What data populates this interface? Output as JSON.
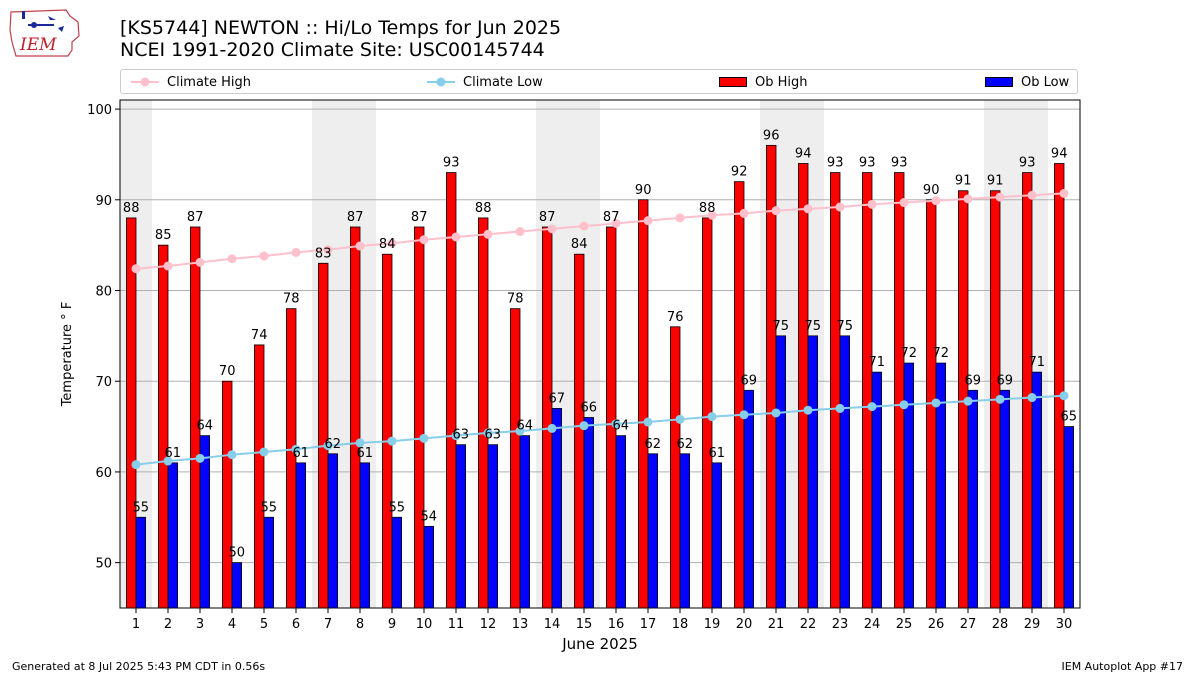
{
  "header": {
    "title_line1": "[KS5744] NEWTON :: Hi/Lo Temps for Jun 2025",
    "title_line2": "NCEI 1991-2020 Climate Site: USC00145744",
    "logo_text": "IEM"
  },
  "footer": {
    "generated": "Generated at 8 Jul 2025 5:43 PM CDT in 0.56s",
    "app": "IEM Autoplot App #17"
  },
  "colors": {
    "ob_high": "#ff0000",
    "ob_low": "#0000ff",
    "climate_high": "#ffc0cb",
    "climate_low": "#87ceeb",
    "weekend_shade": "#eeeeee",
    "grid": "#b0b0b0"
  },
  "chart_data": {
    "type": "bar",
    "xlabel": "June 2025",
    "ylabel": "Temperature ° F",
    "ylim": [
      45,
      101
    ],
    "yticks": [
      50,
      60,
      70,
      80,
      90,
      100
    ],
    "grid": "horizontal",
    "legend_placement": "top",
    "categories": [
      "1",
      "2",
      "3",
      "4",
      "5",
      "6",
      "7",
      "8",
      "9",
      "10",
      "11",
      "12",
      "13",
      "14",
      "15",
      "16",
      "17",
      "18",
      "19",
      "20",
      "21",
      "22",
      "23",
      "24",
      "25",
      "26",
      "27",
      "28",
      "29",
      "30"
    ],
    "shaded_days": [
      1,
      7,
      8,
      14,
      15,
      21,
      22,
      28,
      29
    ],
    "series": [
      {
        "name": "Ob High",
        "kind": "bar",
        "values": [
          88,
          85,
          87,
          70,
          74,
          78,
          83,
          87,
          84,
          87,
          93,
          88,
          78,
          87,
          84,
          87,
          90,
          76,
          88,
          92,
          96,
          94,
          93,
          93,
          93,
          90,
          91,
          91,
          93,
          94
        ]
      },
      {
        "name": "Ob Low",
        "kind": "bar",
        "values": [
          55,
          61,
          64,
          50,
          55,
          61,
          62,
          61,
          55,
          54,
          63,
          63,
          64,
          67,
          66,
          64,
          62,
          62,
          61,
          69,
          75,
          75,
          75,
          71,
          72,
          72,
          69,
          69,
          71,
          65
        ]
      },
      {
        "name": "Climate High",
        "kind": "line",
        "values": [
          82.4,
          82.7,
          83.1,
          83.5,
          83.8,
          84.2,
          84.5,
          84.9,
          85.2,
          85.6,
          85.9,
          86.2,
          86.5,
          86.8,
          87.1,
          87.4,
          87.7,
          88.0,
          88.3,
          88.5,
          88.8,
          89.0,
          89.2,
          89.5,
          89.7,
          89.9,
          90.1,
          90.3,
          90.5,
          90.7
        ]
      },
      {
        "name": "Climate Low",
        "kind": "line",
        "values": [
          60.8,
          61.2,
          61.5,
          61.9,
          62.2,
          62.5,
          62.9,
          63.2,
          63.4,
          63.7,
          64.0,
          64.3,
          64.5,
          64.8,
          65.1,
          65.3,
          65.5,
          65.8,
          66.1,
          66.3,
          66.5,
          66.8,
          67.0,
          67.2,
          67.4,
          67.6,
          67.8,
          68.0,
          68.2,
          68.4
        ]
      }
    ]
  }
}
